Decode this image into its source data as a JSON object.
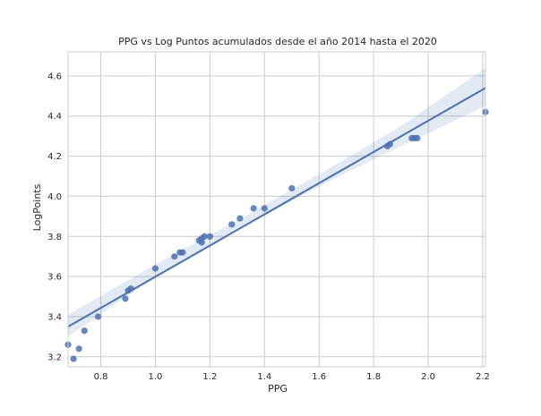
{
  "chart_data": {
    "type": "scatter",
    "title": "PPG vs Log Puntos acumulados desde el año 2014 hasta el 2020",
    "xlabel": "PPG",
    "ylabel": "LogPoints",
    "xlim": [
      0.68,
      2.21
    ],
    "ylim": [
      3.15,
      4.72
    ],
    "xticks": [
      0.8,
      1.0,
      1.2,
      1.4,
      1.6,
      1.8,
      2.0,
      2.2
    ],
    "xtick_labels": [
      "0.8",
      "1.0",
      "1.2",
      "1.4",
      "1.6",
      "1.8",
      "2.0",
      "2.2"
    ],
    "yticks": [
      3.2,
      3.4,
      3.6,
      3.8,
      4.0,
      4.2,
      4.4,
      4.6
    ],
    "ytick_labels": [
      "3.2",
      "3.4",
      "3.6",
      "3.8",
      "4.0",
      "4.2",
      "4.4",
      "4.6"
    ],
    "grid": true,
    "points": [
      {
        "x": 0.68,
        "y": 3.26
      },
      {
        "x": 0.7,
        "y": 3.19
      },
      {
        "x": 0.72,
        "y": 3.24
      },
      {
        "x": 0.74,
        "y": 3.33
      },
      {
        "x": 0.79,
        "y": 3.4
      },
      {
        "x": 0.89,
        "y": 3.49
      },
      {
        "x": 0.9,
        "y": 3.53
      },
      {
        "x": 0.91,
        "y": 3.54
      },
      {
        "x": 1.0,
        "y": 3.64
      },
      {
        "x": 1.07,
        "y": 3.7
      },
      {
        "x": 1.09,
        "y": 3.72
      },
      {
        "x": 1.1,
        "y": 3.72
      },
      {
        "x": 1.16,
        "y": 3.78
      },
      {
        "x": 1.17,
        "y": 3.77
      },
      {
        "x": 1.17,
        "y": 3.79
      },
      {
        "x": 1.18,
        "y": 3.8
      },
      {
        "x": 1.2,
        "y": 3.8
      },
      {
        "x": 1.28,
        "y": 3.86
      },
      {
        "x": 1.31,
        "y": 3.89
      },
      {
        "x": 1.36,
        "y": 3.94
      },
      {
        "x": 1.4,
        "y": 3.94
      },
      {
        "x": 1.5,
        "y": 4.04
      },
      {
        "x": 1.85,
        "y": 4.25
      },
      {
        "x": 1.86,
        "y": 4.26
      },
      {
        "x": 1.94,
        "y": 4.29
      },
      {
        "x": 1.95,
        "y": 4.29
      },
      {
        "x": 1.96,
        "y": 4.29
      },
      {
        "x": 2.21,
        "y": 4.42
      }
    ],
    "regression_line": {
      "x": [
        0.68,
        2.21
      ],
      "y": [
        3.35,
        4.54
      ]
    },
    "confidence_band": {
      "x": [
        0.68,
        1.0,
        1.3,
        1.6,
        1.9,
        2.21
      ],
      "lower": [
        3.3,
        3.6,
        3.83,
        4.05,
        4.25,
        4.45
      ],
      "upper": [
        3.41,
        3.66,
        3.88,
        4.11,
        4.35,
        4.64
      ]
    },
    "colors": {
      "points": "#4c72b0",
      "line": "#4c72b0",
      "band": "#4c72b0",
      "grid": "#cccccc",
      "axes_edge": "#cccccc"
    }
  }
}
